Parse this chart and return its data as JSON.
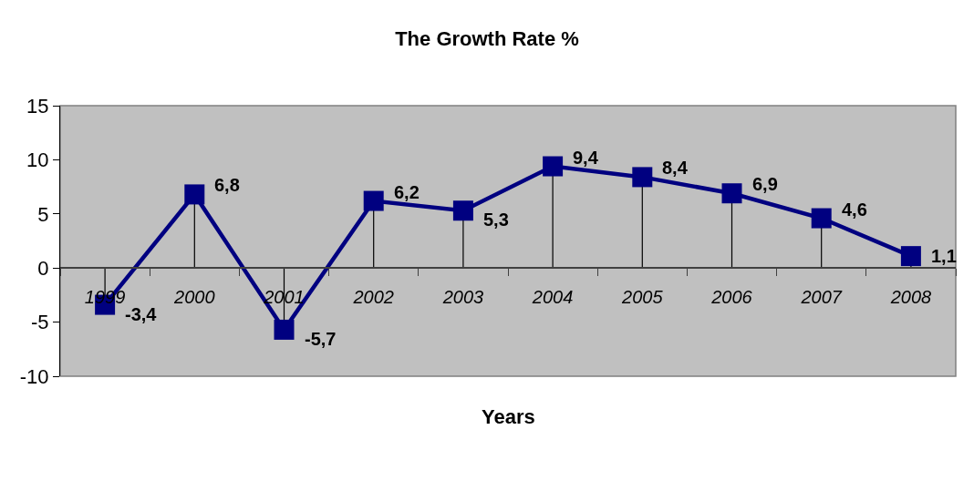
{
  "chart_data": {
    "type": "line",
    "title": "The Growth Rate %",
    "xlabel": "Years",
    "categories": [
      "1999",
      "2000",
      "2001",
      "2002",
      "2003",
      "2004",
      "2005",
      "2006",
      "2007",
      "2008"
    ],
    "series": [
      {
        "color": "#000080",
        "values": [
          -3.4,
          6.8,
          -5.7,
          6.2,
          5.3,
          9.4,
          8.4,
          6.9,
          4.6,
          1.1
        ],
        "value_labels": [
          "-3,4",
          "6,8",
          "-5,7",
          "6,2",
          "5,3",
          "9,4",
          "8,4",
          "6,9",
          "4,6",
          "1,1"
        ]
      }
    ],
    "ylim": [
      -10,
      15
    ],
    "yticks": [
      -10,
      -5,
      0,
      5,
      10,
      15
    ],
    "grid": false,
    "marker": "square",
    "line_style": "solid"
  }
}
